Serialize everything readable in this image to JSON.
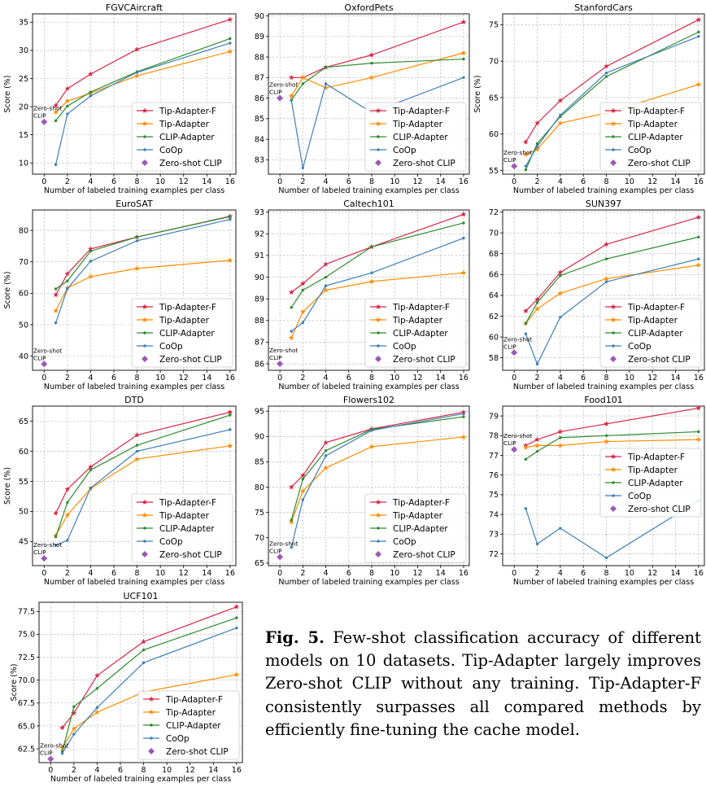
{
  "colors": {
    "tip_adapter_f": "#d62748",
    "tip_adapter": "#ff8c00",
    "clip_adapter": "#2e8b2e",
    "coop": "#3f7fb7",
    "zero_shot_clip": "#9b59b6"
  },
  "caption": {
    "label": "Fig. 5.",
    "text": "Few-shot classification accuracy of different models on 10 datasets. Tip-Adapter largely improves Zero-shot CLIP without any training. Tip-Adapter-F consistently surpasses all compared methods by efficiently fine-tuning the cache model."
  },
  "chart_data": [
    {
      "type": "line",
      "title": "FGVCAircraft",
      "xlabel": "Number of labeled training examples per class",
      "ylabel": "Score (%)",
      "xlim": [
        -1,
        16.5
      ],
      "ylim": [
        8,
        36.5
      ],
      "xticks": [
        0,
        2,
        4,
        6,
        8,
        10,
        12,
        14,
        16
      ],
      "yticks": [
        10,
        15,
        20,
        25,
        30,
        35
      ],
      "grid": true,
      "legend": "lower-right",
      "x": [
        1,
        2,
        4,
        8,
        16
      ],
      "series": [
        {
          "name": "Tip-Adapter-F",
          "values": [
            20.2,
            23.2,
            25.8,
            30.2,
            35.5
          ]
        },
        {
          "name": "Tip-Adapter",
          "values": [
            19.0,
            21.0,
            22.4,
            25.5,
            29.8
          ]
        },
        {
          "name": "CLIP-Adapter",
          "values": [
            17.5,
            20.1,
            22.6,
            26.2,
            32.1
          ]
        },
        {
          "name": "CoOp",
          "values": [
            9.7,
            18.7,
            21.9,
            26.1,
            31.3
          ]
        }
      ],
      "zero_shot": {
        "name": "Zero-shot CLIP",
        "x": 0,
        "value": 17.3
      },
      "annotation": [
        "Zero-shot",
        "CLIP"
      ]
    },
    {
      "type": "line",
      "title": "OxfordPets",
      "xlabel": "Number of labeled training examples per class",
      "ylabel": "",
      "xlim": [
        -1,
        16.5
      ],
      "ylim": [
        82.3,
        90.1
      ],
      "xticks": [
        0,
        2,
        4,
        6,
        8,
        10,
        12,
        14,
        16
      ],
      "yticks": [
        83,
        84,
        85,
        86,
        87,
        88,
        89,
        90
      ],
      "grid": true,
      "legend": "lower-right",
      "x": [
        1,
        2,
        4,
        8,
        16
      ],
      "series": [
        {
          "name": "Tip-Adapter-F",
          "values": [
            87.0,
            87.0,
            87.5,
            88.1,
            89.7
          ]
        },
        {
          "name": "Tip-Adapter",
          "values": [
            86.1,
            87.0,
            86.5,
            87.0,
            88.2
          ]
        },
        {
          "name": "CLIP-Adapter",
          "values": [
            85.9,
            86.7,
            87.5,
            87.7,
            87.9
          ]
        },
        {
          "name": "CoOp",
          "values": [
            85.9,
            82.6,
            86.7,
            85.3,
            87.0
          ]
        }
      ],
      "zero_shot": {
        "name": "Zero-shot CLIP",
        "x": 0,
        "value": 86.0
      },
      "annotation": [
        "Zero-shot",
        "CLIP"
      ]
    },
    {
      "type": "line",
      "title": "StanfordCars",
      "xlabel": "Number of labeled training examples per class",
      "ylabel": "Score (%)",
      "xlim": [
        -1,
        16.5
      ],
      "ylim": [
        54.5,
        76.5
      ],
      "xticks": [
        0,
        2,
        4,
        6,
        8,
        10,
        12,
        14,
        16
      ],
      "yticks": [
        55,
        60,
        65,
        70,
        75
      ],
      "grid": true,
      "legend": "lower-right",
      "x": [
        1,
        2,
        4,
        8,
        16
      ],
      "series": [
        {
          "name": "Tip-Adapter-F",
          "values": [
            58.9,
            61.5,
            64.6,
            69.3,
            75.7
          ]
        },
        {
          "name": "Tip-Adapter",
          "values": [
            57.2,
            57.9,
            61.5,
            62.9,
            66.8
          ]
        },
        {
          "name": "CLIP-Adapter",
          "values": [
            55.1,
            58.7,
            62.4,
            67.9,
            74.0
          ]
        },
        {
          "name": "CoOp",
          "values": [
            55.6,
            58.3,
            62.6,
            68.4,
            73.4
          ]
        }
      ],
      "zero_shot": {
        "name": "Zero-shot CLIP",
        "x": 0,
        "value": 55.6
      },
      "annotation": [
        "Zero-shot",
        "CLIP"
      ]
    },
    {
      "type": "line",
      "title": "EuroSAT",
      "xlabel": "Number of labeled training examples per class",
      "ylabel": "Score (%)",
      "xlim": [
        -1,
        16.5
      ],
      "ylim": [
        35.5,
        86.5
      ],
      "xticks": [
        0,
        2,
        4,
        6,
        8,
        10,
        12,
        14,
        16
      ],
      "yticks": [
        40,
        50,
        60,
        70,
        80
      ],
      "grid": true,
      "legend": "lower-right",
      "x": [
        1,
        2,
        4,
        8,
        16
      ],
      "series": [
        {
          "name": "Tip-Adapter-F",
          "values": [
            59.5,
            66.2,
            74.1,
            77.9,
            84.5
          ]
        },
        {
          "name": "Tip-Adapter",
          "values": [
            54.4,
            61.7,
            65.3,
            67.9,
            70.5
          ]
        },
        {
          "name": "CLIP-Adapter",
          "values": [
            61.4,
            63.9,
            73.4,
            77.9,
            84.4
          ]
        },
        {
          "name": "CoOp",
          "values": [
            50.6,
            61.5,
            70.2,
            76.7,
            83.5
          ]
        }
      ],
      "zero_shot": {
        "name": "Zero-shot CLIP",
        "x": 0,
        "value": 37.5
      },
      "annotation": [
        "Zero-shot",
        "CLIP"
      ]
    },
    {
      "type": "line",
      "title": "Caltech101",
      "xlabel": "Number of labeled training examples per class",
      "ylabel": "",
      "xlim": [
        -1,
        16.5
      ],
      "ylim": [
        85.7,
        93.1
      ],
      "xticks": [
        0,
        2,
        4,
        6,
        8,
        10,
        12,
        14,
        16
      ],
      "yticks": [
        86,
        87,
        88,
        89,
        90,
        91,
        92,
        93
      ],
      "grid": true,
      "legend": "lower-right",
      "x": [
        1,
        2,
        4,
        8,
        16
      ],
      "series": [
        {
          "name": "Tip-Adapter-F",
          "values": [
            89.3,
            89.7,
            90.6,
            91.4,
            92.9
          ]
        },
        {
          "name": "Tip-Adapter",
          "values": [
            87.2,
            88.4,
            89.4,
            89.8,
            90.2
          ]
        },
        {
          "name": "CLIP-Adapter",
          "values": [
            88.6,
            89.4,
            90.0,
            91.4,
            92.5
          ]
        },
        {
          "name": "CoOp",
          "values": [
            87.5,
            87.9,
            89.6,
            90.2,
            91.8
          ]
        }
      ],
      "zero_shot": {
        "name": "Zero-shot CLIP",
        "x": 0,
        "value": 86.0
      },
      "annotation": [
        "Zero-shot",
        "CLIP"
      ]
    },
    {
      "type": "line",
      "title": "SUN397",
      "xlabel": "Number of labeled training examples per class",
      "ylabel": "",
      "xlim": [
        -1,
        16.5
      ],
      "ylim": [
        56.8,
        72.2
      ],
      "xticks": [
        0,
        2,
        4,
        6,
        8,
        10,
        12,
        14,
        16
      ],
      "yticks": [
        58,
        60,
        62,
        64,
        66,
        68,
        70,
        72
      ],
      "grid": true,
      "legend": "lower-right",
      "x": [
        1,
        2,
        4,
        8,
        16
      ],
      "series": [
        {
          "name": "Tip-Adapter-F",
          "values": [
            62.5,
            63.6,
            66.2,
            68.9,
            71.5
          ]
        },
        {
          "name": "Tip-Adapter",
          "values": [
            61.3,
            62.7,
            64.2,
            65.6,
            66.9
          ]
        },
        {
          "name": "CLIP-Adapter",
          "values": [
            61.3,
            63.3,
            65.9,
            67.5,
            69.6
          ]
        },
        {
          "name": "CoOp",
          "values": [
            60.3,
            57.4,
            61.9,
            65.3,
            67.5
          ]
        }
      ],
      "zero_shot": {
        "name": "Zero-shot CLIP",
        "x": 0,
        "value": 58.5
      },
      "annotation": [
        "Zero-shot",
        "CLIP"
      ]
    },
    {
      "type": "line",
      "title": "DTD",
      "xlabel": "Number of labeled training examples per class",
      "ylabel": "Score (%)",
      "xlim": [
        -1,
        16.5
      ],
      "ylim": [
        41,
        67.5
      ],
      "xticks": [
        0,
        2,
        4,
        6,
        8,
        10,
        12,
        14,
        16
      ],
      "yticks": [
        45,
        50,
        55,
        60,
        65
      ],
      "grid": true,
      "legend": "lower-right",
      "x": [
        1,
        2,
        4,
        8,
        16
      ],
      "series": [
        {
          "name": "Tip-Adapter-F",
          "values": [
            49.7,
            53.7,
            57.4,
            62.7,
            66.5
          ]
        },
        {
          "name": "Tip-Adapter",
          "values": [
            46.0,
            49.4,
            53.8,
            58.7,
            60.9
          ]
        },
        {
          "name": "CLIP-Adapter",
          "values": [
            45.8,
            51.5,
            56.9,
            61.0,
            66.0
          ]
        },
        {
          "name": "CoOp",
          "values": [
            44.4,
            45.2,
            53.9,
            60.0,
            63.6
          ]
        }
      ],
      "zero_shot": {
        "name": "Zero-shot CLIP",
        "x": 0,
        "value": 42.2
      },
      "annotation": [
        "Zero-shot",
        "CLIP"
      ]
    },
    {
      "type": "line",
      "title": "Flowers102",
      "xlabel": "Number of labeled training examples per class",
      "ylabel": "",
      "xlim": [
        -1,
        16.5
      ],
      "ylim": [
        64.5,
        96
      ],
      "xticks": [
        0,
        2,
        4,
        6,
        8,
        10,
        12,
        14,
        16
      ],
      "yticks": [
        65,
        70,
        75,
        80,
        85,
        90,
        95
      ],
      "grid": true,
      "legend": "lower-right",
      "x": [
        1,
        2,
        4,
        8,
        16
      ],
      "series": [
        {
          "name": "Tip-Adapter-F",
          "values": [
            80.0,
            82.3,
            88.8,
            91.5,
            94.8
          ]
        },
        {
          "name": "Tip-Adapter",
          "values": [
            73.1,
            79.2,
            83.8,
            88.0,
            89.9
          ]
        },
        {
          "name": "CLIP-Adapter",
          "values": [
            73.5,
            81.6,
            87.2,
            91.4,
            93.9
          ]
        },
        {
          "name": "CoOp",
          "values": [
            68.1,
            77.5,
            86.2,
            91.2,
            94.5
          ]
        }
      ],
      "zero_shot": {
        "name": "Zero-shot CLIP",
        "x": 0,
        "value": 66.2
      },
      "annotation": [
        "Zero-shot",
        "CLIP"
      ]
    },
    {
      "type": "line",
      "title": "Food101",
      "xlabel": "Number of labeled training examples per class",
      "ylabel": "",
      "xlim": [
        -1,
        16.5
      ],
      "ylim": [
        71.4,
        79.5
      ],
      "xticks": [
        0,
        2,
        4,
        6,
        8,
        10,
        12,
        14,
        16
      ],
      "yticks": [
        72,
        73,
        74,
        75,
        76,
        77,
        78,
        79
      ],
      "grid": true,
      "legend": "center-right",
      "x": [
        1,
        2,
        4,
        8,
        16
      ],
      "series": [
        {
          "name": "Tip-Adapter-F",
          "values": [
            77.5,
            77.8,
            78.2,
            78.6,
            79.4
          ]
        },
        {
          "name": "Tip-Adapter",
          "values": [
            77.4,
            77.5,
            77.5,
            77.7,
            77.8
          ]
        },
        {
          "name": "CLIP-Adapter",
          "values": [
            76.8,
            77.2,
            77.9,
            78.0,
            78.2
          ]
        },
        {
          "name": "CoOp",
          "values": [
            74.3,
            72.5,
            73.3,
            71.8,
            74.7
          ]
        }
      ],
      "zero_shot": {
        "name": "Zero-shot CLIP",
        "x": 0,
        "value": 77.3
      },
      "annotation": [
        "Zero-shot",
        "CLIP"
      ]
    },
    {
      "type": "line",
      "title": "UCF101",
      "xlabel": "Number of labeled training examples per class",
      "ylabel": "Score (%)",
      "xlim": [
        -1,
        16.5
      ],
      "ylim": [
        61,
        78.5
      ],
      "xticks": [
        0,
        2,
        4,
        6,
        8,
        10,
        12,
        14,
        16
      ],
      "yticks": [
        62.5,
        65.0,
        67.5,
        70.0,
        72.5,
        75.0,
        77.5
      ],
      "ytick_labels": [
        "62.5",
        "65.0",
        "67.5",
        "70.0",
        "72.5",
        "75.0",
        "77.5"
      ],
      "grid": true,
      "legend": "lower-right",
      "x": [
        1,
        2,
        4,
        8,
        16
      ],
      "series": [
        {
          "name": "Tip-Adapter-F",
          "values": [
            64.8,
            66.4,
            70.5,
            74.2,
            78.0
          ]
        },
        {
          "name": "Tip-Adapter",
          "values": [
            62.6,
            64.7,
            66.5,
            68.7,
            70.6
          ]
        },
        {
          "name": "CLIP-Adapter",
          "values": [
            62.2,
            67.1,
            69.1,
            73.3,
            76.8
          ]
        },
        {
          "name": "CoOp",
          "values": [
            62.0,
            64.1,
            67.0,
            71.9,
            75.7
          ]
        }
      ],
      "zero_shot": {
        "name": "Zero-shot CLIP",
        "x": 0,
        "value": 61.4
      },
      "annotation": [
        "Zero-shot",
        "CLIP"
      ]
    }
  ]
}
